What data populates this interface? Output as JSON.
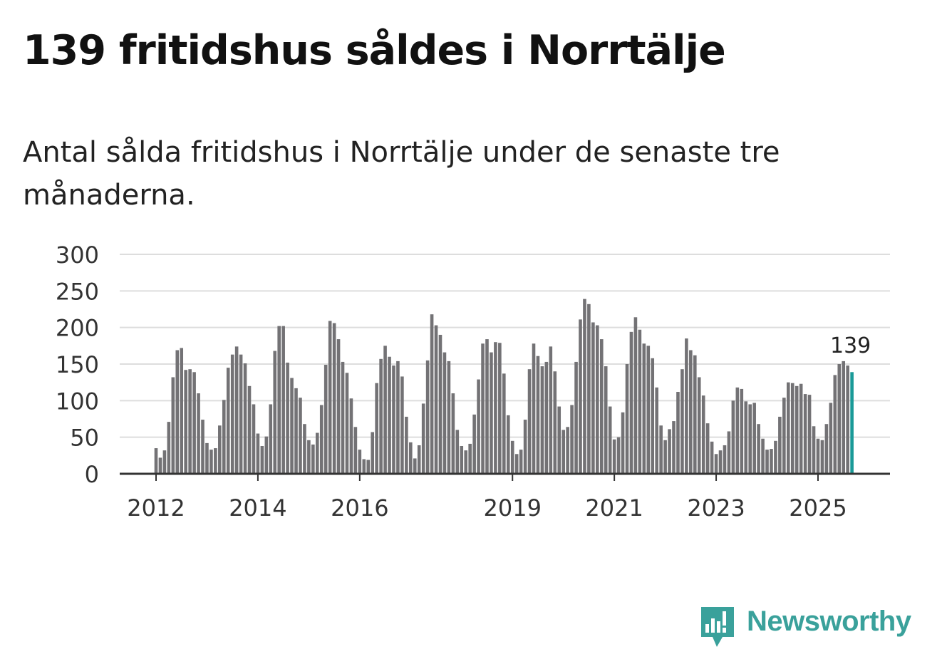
{
  "title": "139 fritidshus såldes i Norrtälje",
  "subtitle": "Antal sålda fritidshus i Norrtälje under de senaste tre månaderna.",
  "brand": {
    "name": "Newsworthy",
    "icon": "bar-chart-speech-bubble-icon",
    "color": "#3aa19b"
  },
  "colors": {
    "bar": "#737275",
    "highlight": "#1a9a98",
    "grid": "#dddddd",
    "axis": "#333333"
  },
  "chart_data": {
    "type": "bar",
    "title": "139 fritidshus såldes i Norrtälje",
    "subtitle": "Antal sålda fritidshus i Norrtälje under de senaste tre månaderna.",
    "xlabel": "",
    "ylabel": "",
    "ylim": [
      0,
      300
    ],
    "yticks": [
      0,
      50,
      100,
      150,
      200,
      250,
      300
    ],
    "xtick_labels": [
      "2012",
      "2014",
      "2016",
      "2019",
      "2021",
      "2023",
      "2025"
    ],
    "grid": true,
    "first_period": "2012-01",
    "highlight": {
      "period": "2025-08",
      "value": 139,
      "label": "139"
    },
    "values": [
      35,
      22,
      32,
      71,
      132,
      169,
      172,
      142,
      143,
      139,
      110,
      74,
      42,
      33,
      35,
      66,
      101,
      145,
      163,
      174,
      163,
      151,
      120,
      95,
      55,
      38,
      51,
      95,
      168,
      202,
      202,
      152,
      131,
      117,
      104,
      68,
      46,
      40,
      56,
      94,
      149,
      209,
      206,
      184,
      153,
      138,
      103,
      64,
      33,
      20,
      19,
      57,
      124,
      157,
      175,
      160,
      148,
      154,
      133,
      78,
      43,
      21,
      39,
      96,
      155,
      218,
      203,
      190,
      166,
      154,
      110,
      60,
      38,
      32,
      41,
      81,
      129,
      178,
      184,
      166,
      180,
      179,
      137,
      80,
      45,
      27,
      33,
      74,
      143,
      178,
      161,
      147,
      153,
      174,
      140,
      92,
      60,
      64,
      94,
      153,
      211,
      239,
      232,
      207,
      203,
      184,
      147,
      92,
      47,
      50,
      84,
      150,
      194,
      214,
      197,
      178,
      175,
      158,
      118,
      66,
      46,
      61,
      72,
      112,
      143,
      185,
      169,
      162,
      132,
      107,
      69,
      44,
      27,
      32,
      39,
      58,
      100,
      118,
      116,
      99,
      95,
      97,
      68,
      48,
      33,
      34,
      45,
      78,
      104,
      125,
      124,
      120,
      123,
      109,
      108,
      65,
      48,
      46,
      68,
      97,
      135,
      150,
      154,
      148,
      139
    ]
  }
}
